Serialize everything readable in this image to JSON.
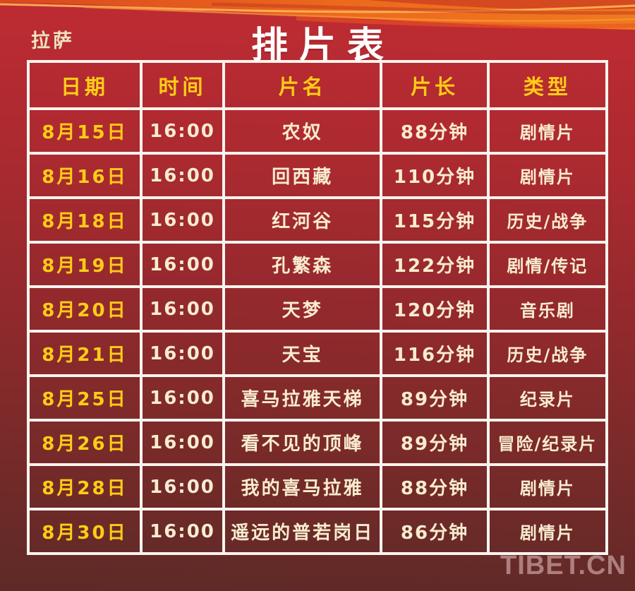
{
  "page": {
    "city_label": "拉萨",
    "title": "排片表",
    "watermark": "TIBET.CN"
  },
  "colors": {
    "background_top": "#bd2b32",
    "background_bottom": "#5d2a27",
    "swoosh_orange_main": "#ec6a1d",
    "swoosh_orange_bright": "#ffb558",
    "swoosh_red_streak": "#c63a20",
    "grid_line": "#faf4ee",
    "header_text": "#ffcc17",
    "date_text": "#ffcc17",
    "cell_text": "#f8ecd0",
    "title_text": "#ffffff",
    "city_text": "#f3e2c0",
    "watermark_text": "rgba(243,211,211,0.5)"
  },
  "table": {
    "columns": [
      "日期",
      "时间",
      "片名",
      "片长",
      "类型"
    ],
    "column_names": [
      "date",
      "time",
      "film-name",
      "duration",
      "genre"
    ],
    "rows": [
      [
        "8月15日",
        "16:00",
        "农奴",
        "88分钟",
        "剧情片"
      ],
      [
        "8月16日",
        "16:00",
        "回西藏",
        "110分钟",
        "剧情片"
      ],
      [
        "8月18日",
        "16:00",
        "红河谷",
        "115分钟",
        "历史/战争"
      ],
      [
        "8月19日",
        "16:00",
        "孔繁森",
        "122分钟",
        "剧情/传记"
      ],
      [
        "8月20日",
        "16:00",
        "天梦",
        "120分钟",
        "音乐剧"
      ],
      [
        "8月21日",
        "16:00",
        "天宝",
        "116分钟",
        "历史/战争"
      ],
      [
        "8月25日",
        "16:00",
        "喜马拉雅天梯",
        "89分钟",
        "纪录片"
      ],
      [
        "8月26日",
        "16:00",
        "看不见的顶峰",
        "89分钟",
        "冒险/纪录片"
      ],
      [
        "8月28日",
        "16:00",
        "我的喜马拉雅",
        "88分钟",
        "剧情片"
      ],
      [
        "8月30日",
        "16:00",
        "遥远的普若岗日",
        "86分钟",
        "剧情片"
      ]
    ]
  }
}
